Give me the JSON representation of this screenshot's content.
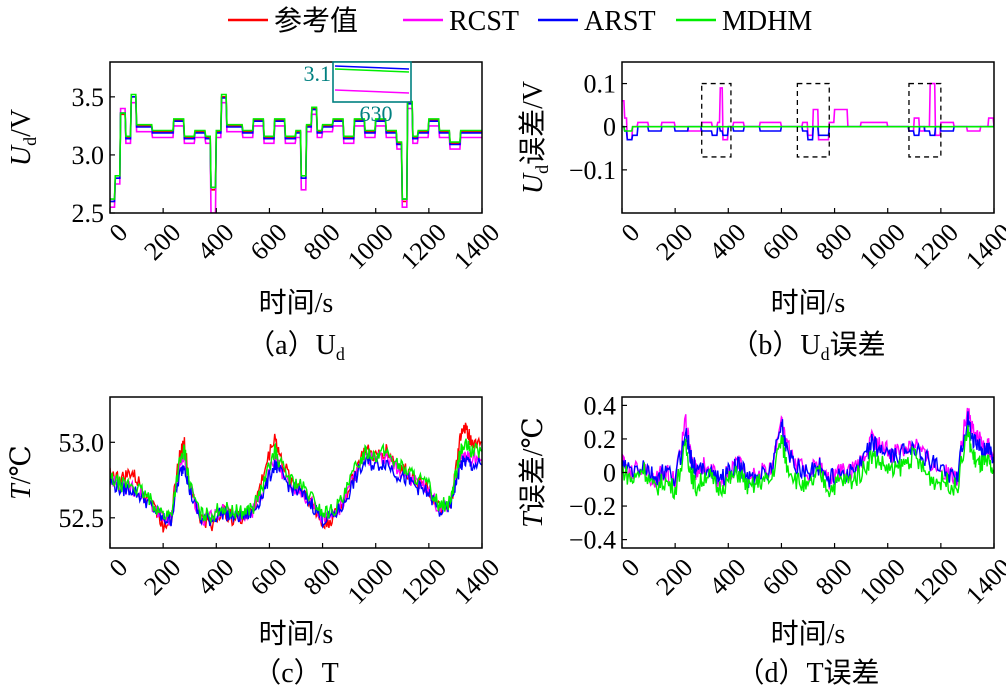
{
  "legend": [
    {
      "name": "参考值",
      "color": "#ff0000"
    },
    {
      "name": "RCST",
      "color": "#ff00ff"
    },
    {
      "name": "ARST",
      "color": "#0000ff"
    },
    {
      "name": "MDHM",
      "color": "#00ee00"
    }
  ],
  "inset": {
    "ylabel": "3.1",
    "xlabel": "630",
    "color": "#008080"
  },
  "chart_data": [
    {
      "id": "a",
      "type": "line",
      "caption": "（a）U",
      "caption_sub": "d",
      "ylabel_main": "U",
      "ylabel_sub": "d",
      "ylabel_rest": "/V",
      "xlabel": "时间/s",
      "xlim": [
        0,
        1400
      ],
      "ylim": [
        2.5,
        3.8
      ],
      "xticks": [
        0,
        200,
        400,
        600,
        800,
        1000,
        1200,
        1400
      ],
      "yticks": [
        2.5,
        3.0,
        3.5
      ],
      "ytick_labels": [
        "2.5",
        "3.0",
        "3.5"
      ],
      "grid": false,
      "x": [
        0,
        20,
        40,
        60,
        80,
        100,
        130,
        160,
        200,
        240,
        280,
        320,
        360,
        380,
        400,
        420,
        440,
        470,
        500,
        540,
        580,
        620,
        660,
        700,
        720,
        740,
        760,
        780,
        800,
        840,
        880,
        920,
        960,
        1000,
        1040,
        1080,
        1100,
        1120,
        1140,
        1160,
        1200,
        1240,
        1280,
        1320,
        1360,
        1400
      ],
      "series": [
        {
          "name": "参考值",
          "values": [
            2.6,
            2.8,
            3.35,
            3.15,
            3.5,
            3.25,
            3.25,
            3.2,
            3.2,
            3.3,
            3.15,
            3.2,
            3.15,
            2.7,
            3.2,
            3.5,
            3.25,
            3.25,
            3.2,
            3.3,
            3.15,
            3.3,
            3.15,
            3.2,
            2.8,
            3.25,
            3.4,
            3.2,
            3.25,
            3.3,
            3.15,
            3.3,
            3.2,
            3.3,
            3.2,
            3.1,
            2.6,
            3.45,
            3.15,
            3.2,
            3.3,
            3.2,
            3.1,
            3.2,
            3.2,
            3.2
          ]
        },
        {
          "name": "RCST",
          "values": [
            2.55,
            2.75,
            3.4,
            3.1,
            3.45,
            3.2,
            3.2,
            3.15,
            3.15,
            3.25,
            3.1,
            3.15,
            3.1,
            2.5,
            3.15,
            3.45,
            3.2,
            3.2,
            3.15,
            3.25,
            3.1,
            3.25,
            3.1,
            3.15,
            2.7,
            3.2,
            3.35,
            3.15,
            3.2,
            3.25,
            3.1,
            3.25,
            3.15,
            3.25,
            3.15,
            3.05,
            2.55,
            3.4,
            3.1,
            3.15,
            3.25,
            3.15,
            3.05,
            3.15,
            3.15,
            3.15
          ]
        },
        {
          "name": "ARST",
          "values": [
            2.6,
            2.8,
            3.36,
            3.14,
            3.5,
            3.24,
            3.24,
            3.19,
            3.19,
            3.29,
            3.14,
            3.19,
            3.14,
            2.72,
            3.19,
            3.49,
            3.24,
            3.24,
            3.19,
            3.29,
            3.14,
            3.29,
            3.14,
            3.19,
            2.8,
            3.24,
            3.39,
            3.19,
            3.24,
            3.29,
            3.14,
            3.29,
            3.19,
            3.29,
            3.19,
            3.09,
            2.62,
            3.44,
            3.14,
            3.19,
            3.29,
            3.19,
            3.09,
            3.19,
            3.19,
            3.19
          ]
        },
        {
          "name": "MDHM",
          "values": [
            2.62,
            2.82,
            3.36,
            3.16,
            3.52,
            3.26,
            3.26,
            3.21,
            3.21,
            3.31,
            3.16,
            3.21,
            3.16,
            2.72,
            3.21,
            3.52,
            3.26,
            3.26,
            3.21,
            3.31,
            3.16,
            3.31,
            3.16,
            3.21,
            2.82,
            3.26,
            3.41,
            3.21,
            3.26,
            3.31,
            3.16,
            3.31,
            3.21,
            3.31,
            3.21,
            3.11,
            2.62,
            3.46,
            3.16,
            3.21,
            3.31,
            3.21,
            3.11,
            3.21,
            3.21,
            3.21
          ]
        }
      ]
    },
    {
      "id": "b",
      "type": "line",
      "caption": "（b）U",
      "caption_sub": "d",
      "caption_rest": "误差",
      "ylabel_main": "U",
      "ylabel_sub": "d",
      "ylabel_rest": "误差/V",
      "xlabel": "时间/s",
      "xlim": [
        0,
        1400
      ],
      "ylim": [
        -0.2,
        0.15
      ],
      "xticks": [
        0,
        200,
        400,
        600,
        800,
        1000,
        1200,
        1400
      ],
      "yticks": [
        -0.1,
        0,
        0.1
      ],
      "ytick_labels": [
        "−0.1",
        "0",
        "0.1"
      ],
      "grid": false,
      "x": [
        0,
        10,
        20,
        40,
        60,
        100,
        150,
        200,
        250,
        300,
        340,
        360,
        370,
        380,
        400,
        420,
        460,
        520,
        600,
        680,
        700,
        720,
        740,
        780,
        800,
        850,
        900,
        1000,
        1080,
        1100,
        1120,
        1140,
        1160,
        1180,
        1200,
        1250,
        1300,
        1350,
        1380,
        1400
      ],
      "series": [
        {
          "name": "RCST",
          "values": [
            0.06,
            0.02,
            -0.03,
            0.0,
            0.01,
            0.0,
            0.01,
            0.0,
            -0.01,
            0.01,
            0.0,
            0.01,
            0.09,
            -0.03,
            0.0,
            0.01,
            0.0,
            0.01,
            0.0,
            0.01,
            -0.02,
            0.04,
            -0.03,
            0.01,
            0.04,
            0.0,
            0.01,
            0.0,
            -0.01,
            0.02,
            -0.01,
            0.0,
            0.1,
            -0.02,
            0.01,
            0.0,
            -0.01,
            0.0,
            0.02,
            0.0
          ]
        },
        {
          "name": "ARST",
          "values": [
            0.0,
            -0.01,
            -0.03,
            -0.02,
            0.0,
            -0.01,
            0.0,
            -0.01,
            0.0,
            -0.01,
            -0.02,
            0.0,
            -0.01,
            -0.02,
            0.0,
            -0.01,
            0.0,
            -0.01,
            0.0,
            -0.01,
            -0.03,
            0.0,
            -0.02,
            0.0,
            0.0,
            0.0,
            0.0,
            0.0,
            -0.01,
            -0.02,
            0.0,
            -0.01,
            -0.02,
            0.0,
            -0.01,
            0.0,
            0.0,
            0.0,
            0.0,
            0.0
          ]
        },
        {
          "name": "MDHM",
          "values": [
            0.0,
            -0.01,
            -0.01,
            0.0,
            0.0,
            0.0,
            0.0,
            0.0,
            0.0,
            0.0,
            0.0,
            0.0,
            0.0,
            0.0,
            0.0,
            0.0,
            0.0,
            0.0,
            0.0,
            0.0,
            0.0,
            0.0,
            0.0,
            0.0,
            0.0,
            0.0,
            0.0,
            0.0,
            0.0,
            0.0,
            0.0,
            0.0,
            0.0,
            0.0,
            0.0,
            0.0,
            0.0,
            0.0,
            0.0,
            0.0
          ]
        }
      ]
    },
    {
      "id": "c",
      "type": "line",
      "caption": "（c）T",
      "ylabel_main": "T",
      "ylabel_rest": "/℃",
      "xlabel": "时间/s",
      "xlim": [
        0,
        1400
      ],
      "ylim": [
        52.3,
        53.3
      ],
      "xticks": [
        0,
        200,
        400,
        600,
        800,
        1000,
        1200,
        1400
      ],
      "yticks": [
        52.5,
        53.0
      ],
      "ytick_labels": [
        "52.5",
        "53.0"
      ],
      "grid": false,
      "x": [
        0,
        40,
        80,
        120,
        160,
        200,
        230,
        260,
        280,
        300,
        340,
        380,
        420,
        460,
        500,
        540,
        580,
        620,
        640,
        680,
        720,
        760,
        800,
        840,
        880,
        920,
        960,
        1000,
        1040,
        1080,
        1120,
        1160,
        1200,
        1240,
        1280,
        1300,
        1320,
        1340,
        1360,
        1400
      ],
      "series": [
        {
          "name": "参考值",
          "values": [
            52.8,
            52.75,
            52.8,
            52.7,
            52.6,
            52.45,
            52.5,
            52.9,
            53.0,
            52.7,
            52.5,
            52.45,
            52.55,
            52.5,
            52.5,
            52.55,
            52.8,
            53.05,
            52.9,
            52.75,
            52.7,
            52.6,
            52.45,
            52.5,
            52.6,
            52.8,
            52.95,
            52.9,
            52.95,
            52.85,
            52.8,
            52.75,
            52.7,
            52.55,
            52.55,
            52.8,
            53.05,
            53.1,
            53.0,
            53.0
          ]
        },
        {
          "name": "RCST",
          "values": [
            52.75,
            52.7,
            52.7,
            52.65,
            52.58,
            52.5,
            52.5,
            52.8,
            52.9,
            52.7,
            52.5,
            52.5,
            52.55,
            52.52,
            52.52,
            52.55,
            52.7,
            52.9,
            52.82,
            52.72,
            52.68,
            52.6,
            52.5,
            52.52,
            52.6,
            52.78,
            52.9,
            52.88,
            52.9,
            52.82,
            52.78,
            52.72,
            52.68,
            52.55,
            52.58,
            52.75,
            52.9,
            52.92,
            52.88,
            52.88
          ]
        },
        {
          "name": "ARST",
          "values": [
            52.74,
            52.69,
            52.69,
            52.64,
            52.57,
            52.49,
            52.49,
            52.77,
            52.86,
            52.68,
            52.49,
            52.49,
            52.54,
            52.51,
            52.51,
            52.54,
            52.68,
            52.86,
            52.8,
            52.7,
            52.66,
            52.59,
            52.49,
            52.51,
            52.59,
            52.75,
            52.87,
            52.85,
            52.87,
            52.79,
            52.75,
            52.7,
            52.66,
            52.54,
            52.57,
            52.72,
            52.85,
            52.88,
            52.85,
            52.85
          ]
        },
        {
          "name": "MDHM",
          "values": [
            52.76,
            52.72,
            52.72,
            52.67,
            52.6,
            52.52,
            52.52,
            52.85,
            52.95,
            52.72,
            52.52,
            52.52,
            52.57,
            52.54,
            52.54,
            52.57,
            52.73,
            52.95,
            52.86,
            52.75,
            52.71,
            52.63,
            52.53,
            52.55,
            52.63,
            52.82,
            52.94,
            52.92,
            52.94,
            52.86,
            52.81,
            52.76,
            52.71,
            52.58,
            52.6,
            52.78,
            52.94,
            52.98,
            52.94,
            52.94
          ]
        }
      ]
    },
    {
      "id": "d",
      "type": "line",
      "caption": "（d）T",
      "caption_rest": "误差",
      "ylabel_main": "T",
      "ylabel_rest": "误差/℃",
      "xlabel": "时间/s",
      "xlim": [
        0,
        1400
      ],
      "ylim": [
        -0.45,
        0.45
      ],
      "xticks": [
        0,
        200,
        400,
        600,
        800,
        1000,
        1200,
        1400
      ],
      "yticks": [
        -0.4,
        -0.2,
        0,
        0.2,
        0.4
      ],
      "ytick_labels": [
        "−0.4",
        "−0.2",
        "0",
        "0.2",
        "0.4"
      ],
      "grid": false,
      "x": [
        0,
        40,
        80,
        120,
        160,
        200,
        240,
        260,
        280,
        320,
        360,
        400,
        440,
        480,
        520,
        560,
        600,
        620,
        660,
        700,
        740,
        780,
        820,
        860,
        900,
        940,
        980,
        1020,
        1060,
        1100,
        1140,
        1180,
        1220,
        1260,
        1300,
        1320,
        1340,
        1360,
        1380,
        1400
      ],
      "series": [
        {
          "name": "RCST",
          "values": [
            0.05,
            0.0,
            0.05,
            -0.05,
            0.0,
            -0.05,
            0.3,
            0.1,
            0.0,
            0.05,
            -0.05,
            0.0,
            0.05,
            -0.05,
            0.0,
            0.0,
            0.35,
            0.15,
            0.05,
            0.0,
            0.05,
            -0.05,
            0.0,
            0.0,
            0.05,
            0.2,
            0.15,
            0.1,
            0.15,
            0.2,
            0.1,
            0.05,
            0.0,
            -0.05,
            0.4,
            0.25,
            0.2,
            0.15,
            0.15,
            0.1
          ]
        },
        {
          "name": "ARST",
          "values": [
            0.04,
            0.0,
            0.04,
            -0.04,
            0.0,
            -0.04,
            0.25,
            0.08,
            0.0,
            0.04,
            -0.04,
            0.0,
            0.04,
            -0.04,
            0.0,
            0.0,
            0.3,
            0.12,
            0.04,
            0.0,
            0.04,
            -0.04,
            0.0,
            0.0,
            0.04,
            0.17,
            0.13,
            0.08,
            0.12,
            0.17,
            0.08,
            0.04,
            0.0,
            -0.04,
            0.32,
            0.2,
            0.16,
            0.12,
            0.12,
            0.08
          ]
        },
        {
          "name": "MDHM",
          "values": [
            0.02,
            -0.05,
            0.03,
            -0.1,
            -0.05,
            -0.1,
            0.15,
            0.0,
            -0.1,
            0.0,
            -0.1,
            -0.05,
            0.0,
            -0.1,
            -0.05,
            -0.05,
            0.2,
            0.05,
            -0.05,
            -0.1,
            0.0,
            -0.1,
            -0.05,
            -0.05,
            0.0,
            0.1,
            0.05,
            0.0,
            0.05,
            0.1,
            0.0,
            -0.05,
            -0.05,
            -0.1,
            0.25,
            0.1,
            0.05,
            0.05,
            0.05,
            0.0
          ]
        }
      ]
    }
  ]
}
